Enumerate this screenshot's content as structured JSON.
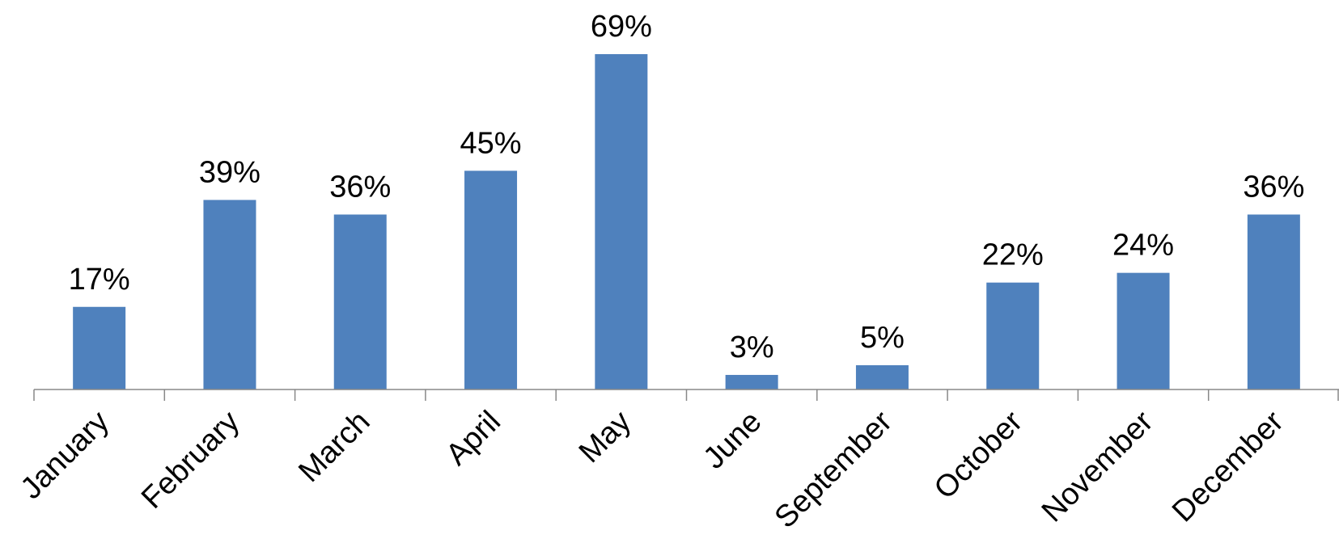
{
  "chart_data": {
    "type": "bar",
    "categories": [
      "January",
      "February",
      "March",
      "April",
      "May",
      "June",
      "September",
      "October",
      "November",
      "December"
    ],
    "values": [
      17,
      39,
      36,
      45,
      69,
      3,
      5,
      22,
      24,
      36
    ],
    "value_labels": [
      "17%",
      "39%",
      "36%",
      "45%",
      "69%",
      "3%",
      "5%",
      "22%",
      "24%",
      "36%"
    ],
    "color": "#4f81bd"
  }
}
